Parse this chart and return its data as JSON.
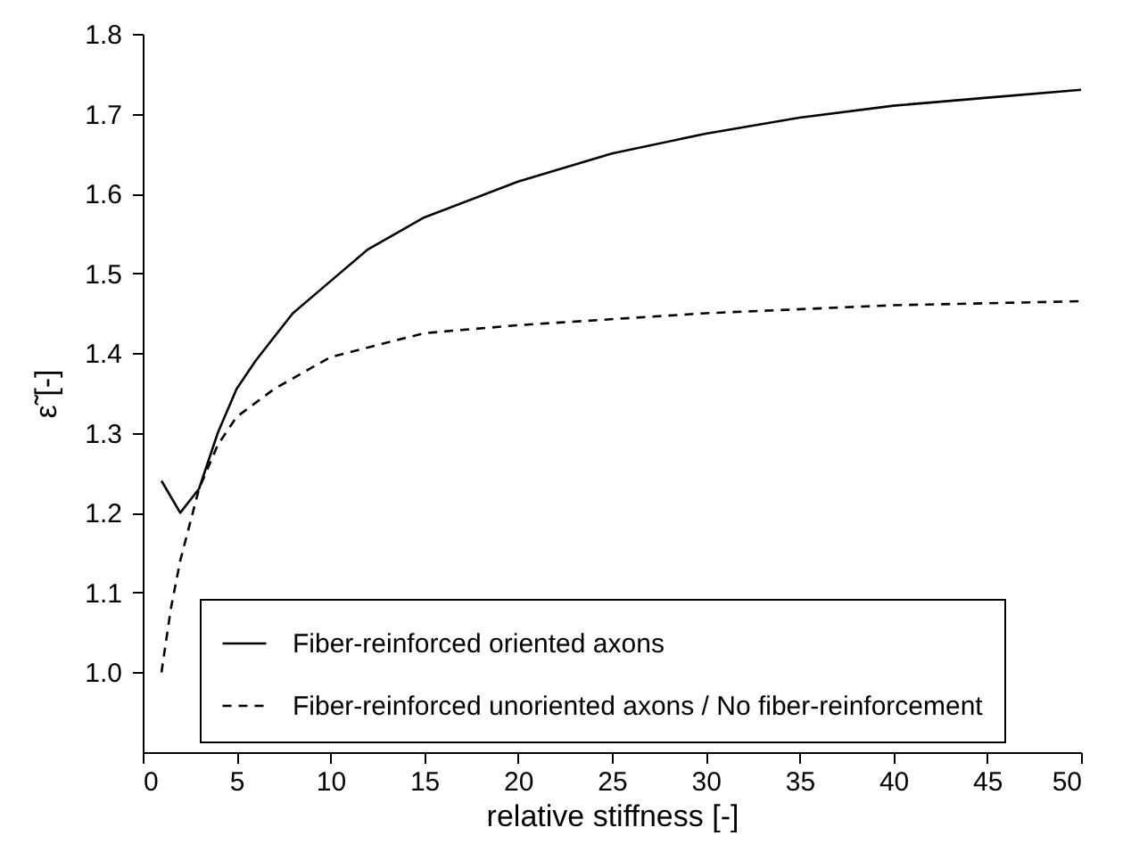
{
  "chart_data": {
    "type": "line",
    "xlabel": "relative stiffness [-]",
    "ylabel": "ε̃ [-]",
    "xlim": [
      0,
      50
    ],
    "xticks": [
      0,
      5,
      10,
      15,
      20,
      25,
      30,
      35,
      40,
      45,
      50
    ],
    "ylim": [
      0.9,
      1.8
    ],
    "yticks": [
      {
        "value": 1,
        "label": "1.0"
      },
      1.1,
      1.2,
      1.3,
      1.4,
      1.5,
      1.6,
      1.7,
      1.8
    ],
    "grid": false,
    "legend": "bottom left",
    "series": [
      {
        "name": "Fiber-reinforced oriented axons",
        "color": "#000000",
        "line_style": "solid",
        "x": [
          1,
          2,
          3,
          4,
          5,
          6,
          7,
          8,
          10,
          12,
          15,
          20,
          25,
          30,
          35,
          40,
          45,
          50
        ],
        "values": [
          1.24,
          1.2,
          1.23,
          1.3,
          1.355,
          1.39,
          1.42,
          1.45,
          1.49,
          1.53,
          1.57,
          1.615,
          1.65,
          1.675,
          1.695,
          1.71,
          1.72,
          1.73
        ]
      },
      {
        "name": "Fiber-reinforced unoriented axons / No fiber-reinforcement",
        "color": "#000000",
        "line_style": "dashed",
        "x": [
          1,
          1.5,
          2,
          3,
          4,
          5,
          7,
          10,
          15,
          20,
          30,
          40,
          50
        ],
        "values": [
          1.0,
          1.08,
          1.14,
          1.23,
          1.285,
          1.32,
          1.355,
          1.395,
          1.425,
          1.435,
          1.45,
          1.46,
          1.465
        ]
      }
    ]
  }
}
